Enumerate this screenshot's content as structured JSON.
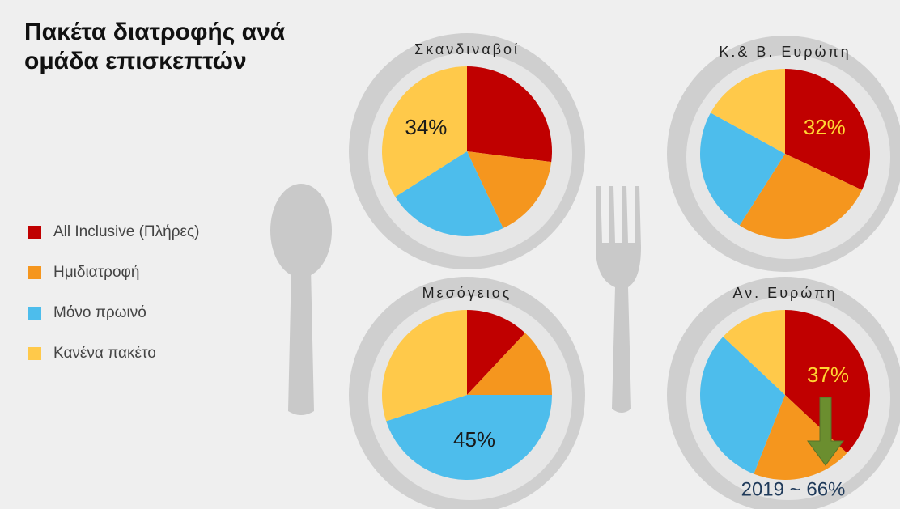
{
  "title": "Πακέτα διατροφής ανά ομάδα επισκεπτών",
  "chart_data": [
    {
      "type": "pie",
      "title": "Σκανδιναβοί",
      "categories": [
        "All Inclusive (Πλήρες)",
        "Ημιδιατροφή",
        "Μόνο πρωινό",
        "Κανένα πακέτο"
      ],
      "colors": [
        "#c00000",
        "#f5961e",
        "#4dbdec",
        "#ffc94a"
      ],
      "values": [
        27,
        16,
        23,
        34
      ],
      "value_labels": [
        null,
        null,
        null,
        "34%"
      ],
      "label_color": "#1a1a1a"
    },
    {
      "type": "pie",
      "title": "Κ.& Β. Ευρώπη",
      "categories": [
        "All Inclusive (Πλήρες)",
        "Ημιδιατροφή",
        "Μόνο πρωινό",
        "Κανένα πακέτο"
      ],
      "colors": [
        "#c00000",
        "#f5961e",
        "#4dbdec",
        "#ffc94a"
      ],
      "values": [
        32,
        27,
        24,
        17
      ],
      "value_labels": [
        "32%",
        null,
        null,
        null
      ],
      "label_color": "#ffd633"
    },
    {
      "type": "pie",
      "title": "Μεσόγειος",
      "categories": [
        "All Inclusive (Πλήρες)",
        "Ημιδιατροφή",
        "Μόνο πρωινό",
        "Κανένα πακέτο"
      ],
      "colors": [
        "#c00000",
        "#f5961e",
        "#4dbdec",
        "#ffc94a"
      ],
      "values": [
        12,
        13,
        45,
        30
      ],
      "value_labels": [
        null,
        null,
        "45%",
        null
      ],
      "label_color": "#1a1a1a"
    },
    {
      "type": "pie",
      "title": "Αν. Ευρώπη",
      "categories": [
        "All Inclusive (Πλήρες)",
        "Ημιδιατροφή",
        "Μόνο πρωινό",
        "Κανένα πακέτο"
      ],
      "colors": [
        "#c00000",
        "#f5961e",
        "#4dbdec",
        "#ffc94a"
      ],
      "values": [
        37,
        19,
        31,
        13
      ],
      "value_labels": [
        "37%",
        null,
        null,
        null
      ],
      "label_color": "#ffd633",
      "annotation": "2019 ~ 66%"
    }
  ]
}
